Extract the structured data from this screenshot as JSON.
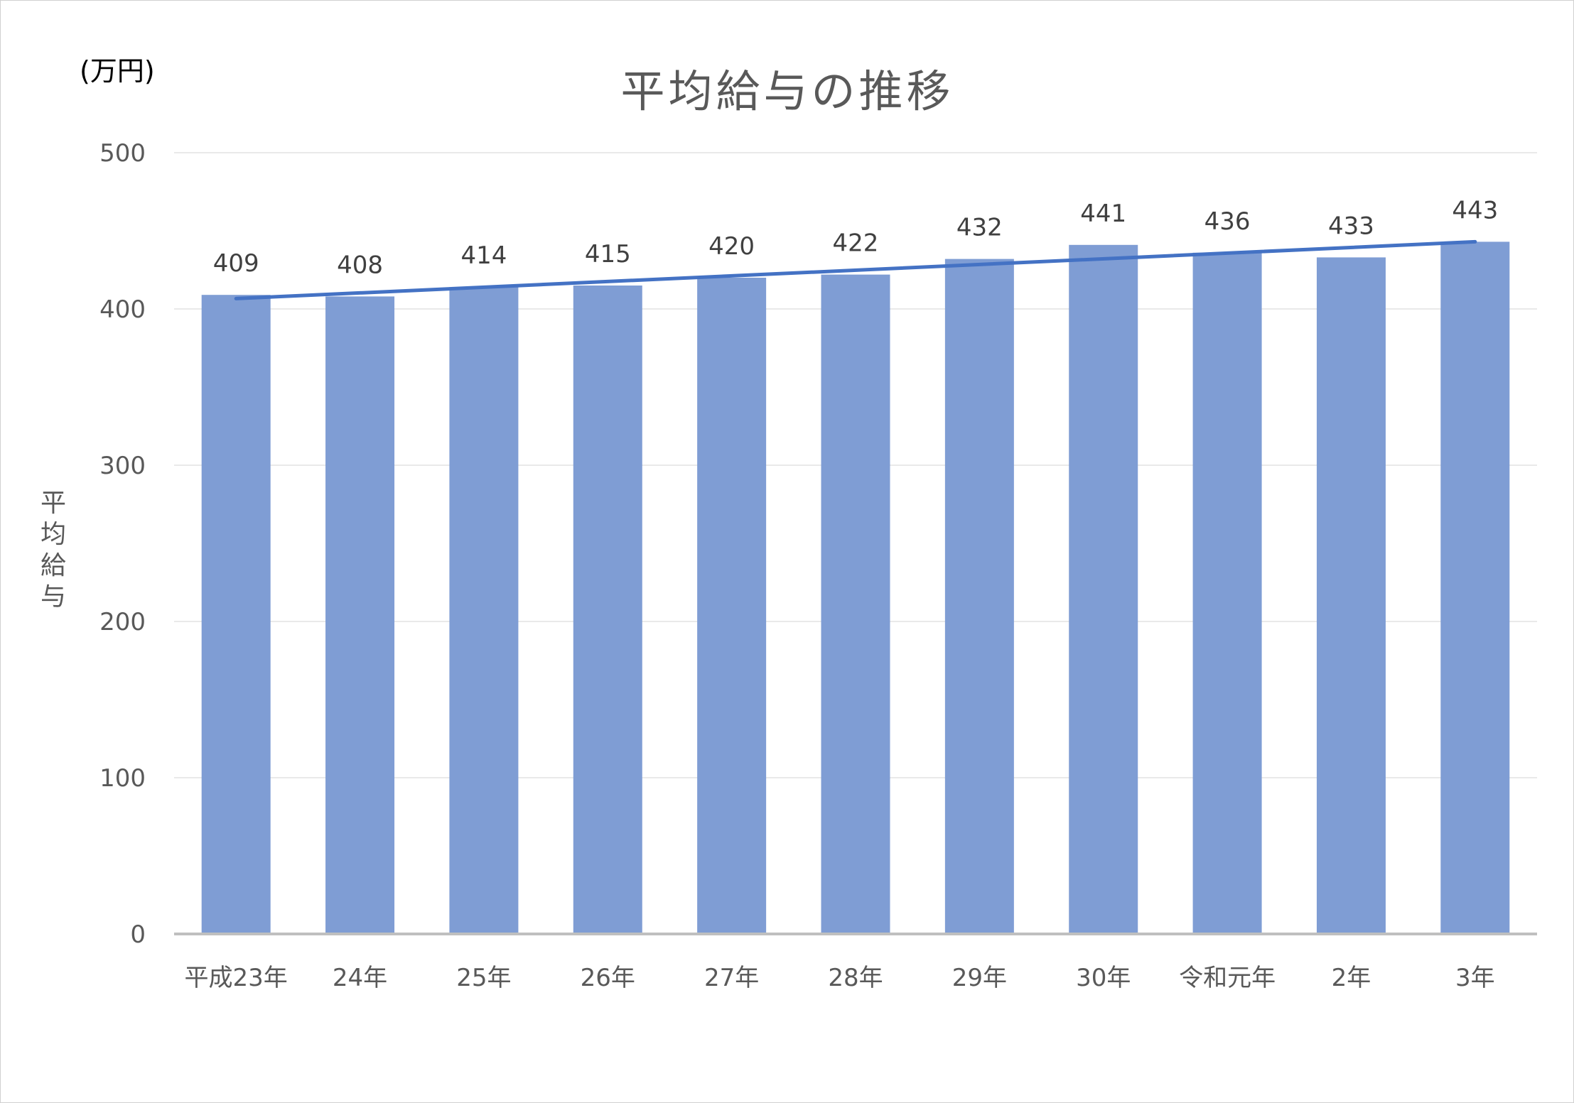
{
  "chart_data": {
    "type": "bar",
    "title": "平均給与の推移",
    "unit_label": "(万円)",
    "ylabel": "平均給与",
    "xlabel": "",
    "categories": [
      "平成23年",
      "24年",
      "25年",
      "26年",
      "27年",
      "28年",
      "29年",
      "30年",
      "令和元年",
      "2年",
      "3年"
    ],
    "values": [
      409,
      408,
      414,
      415,
      420,
      422,
      432,
      441,
      436,
      433,
      443
    ],
    "data_labels": [
      "409",
      "408",
      "414",
      "415",
      "420",
      "422",
      "432",
      "441",
      "436",
      "433",
      "443"
    ],
    "ylim": [
      0,
      500
    ],
    "yticks": [
      "0",
      "100",
      "200",
      "300",
      "400",
      "500"
    ],
    "grid": true,
    "trendline": {
      "type": "linear",
      "color": "#4472c4"
    },
    "colors": {
      "bar": "#7f9dd4",
      "trendline": "#4472c4",
      "grid": "#e9e9e9",
      "axis": "#bfbfbf"
    }
  }
}
